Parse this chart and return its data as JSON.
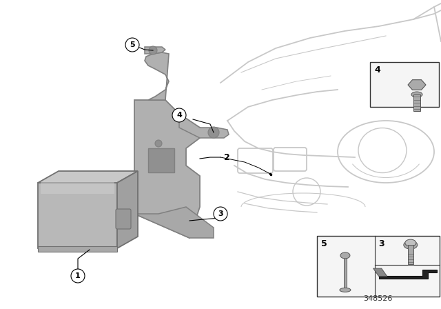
{
  "background_color": "#ffffff",
  "part_number": "348526",
  "car_color": "#c8c8c8",
  "bracket_fill": "#b0b0b0",
  "bracket_edge": "#808080",
  "sensor_fill": "#b8b8b8",
  "sensor_edge": "#707070",
  "label_circle_fill": "#ffffff",
  "label_circle_edge": "#000000",
  "line_color": "#000000",
  "inset_border": "#333333",
  "inset_fill": "#f5f5f5",
  "hardware_fill": "#aaaaaa",
  "hardware_edge": "#555555",
  "clip_fill": "#333333"
}
